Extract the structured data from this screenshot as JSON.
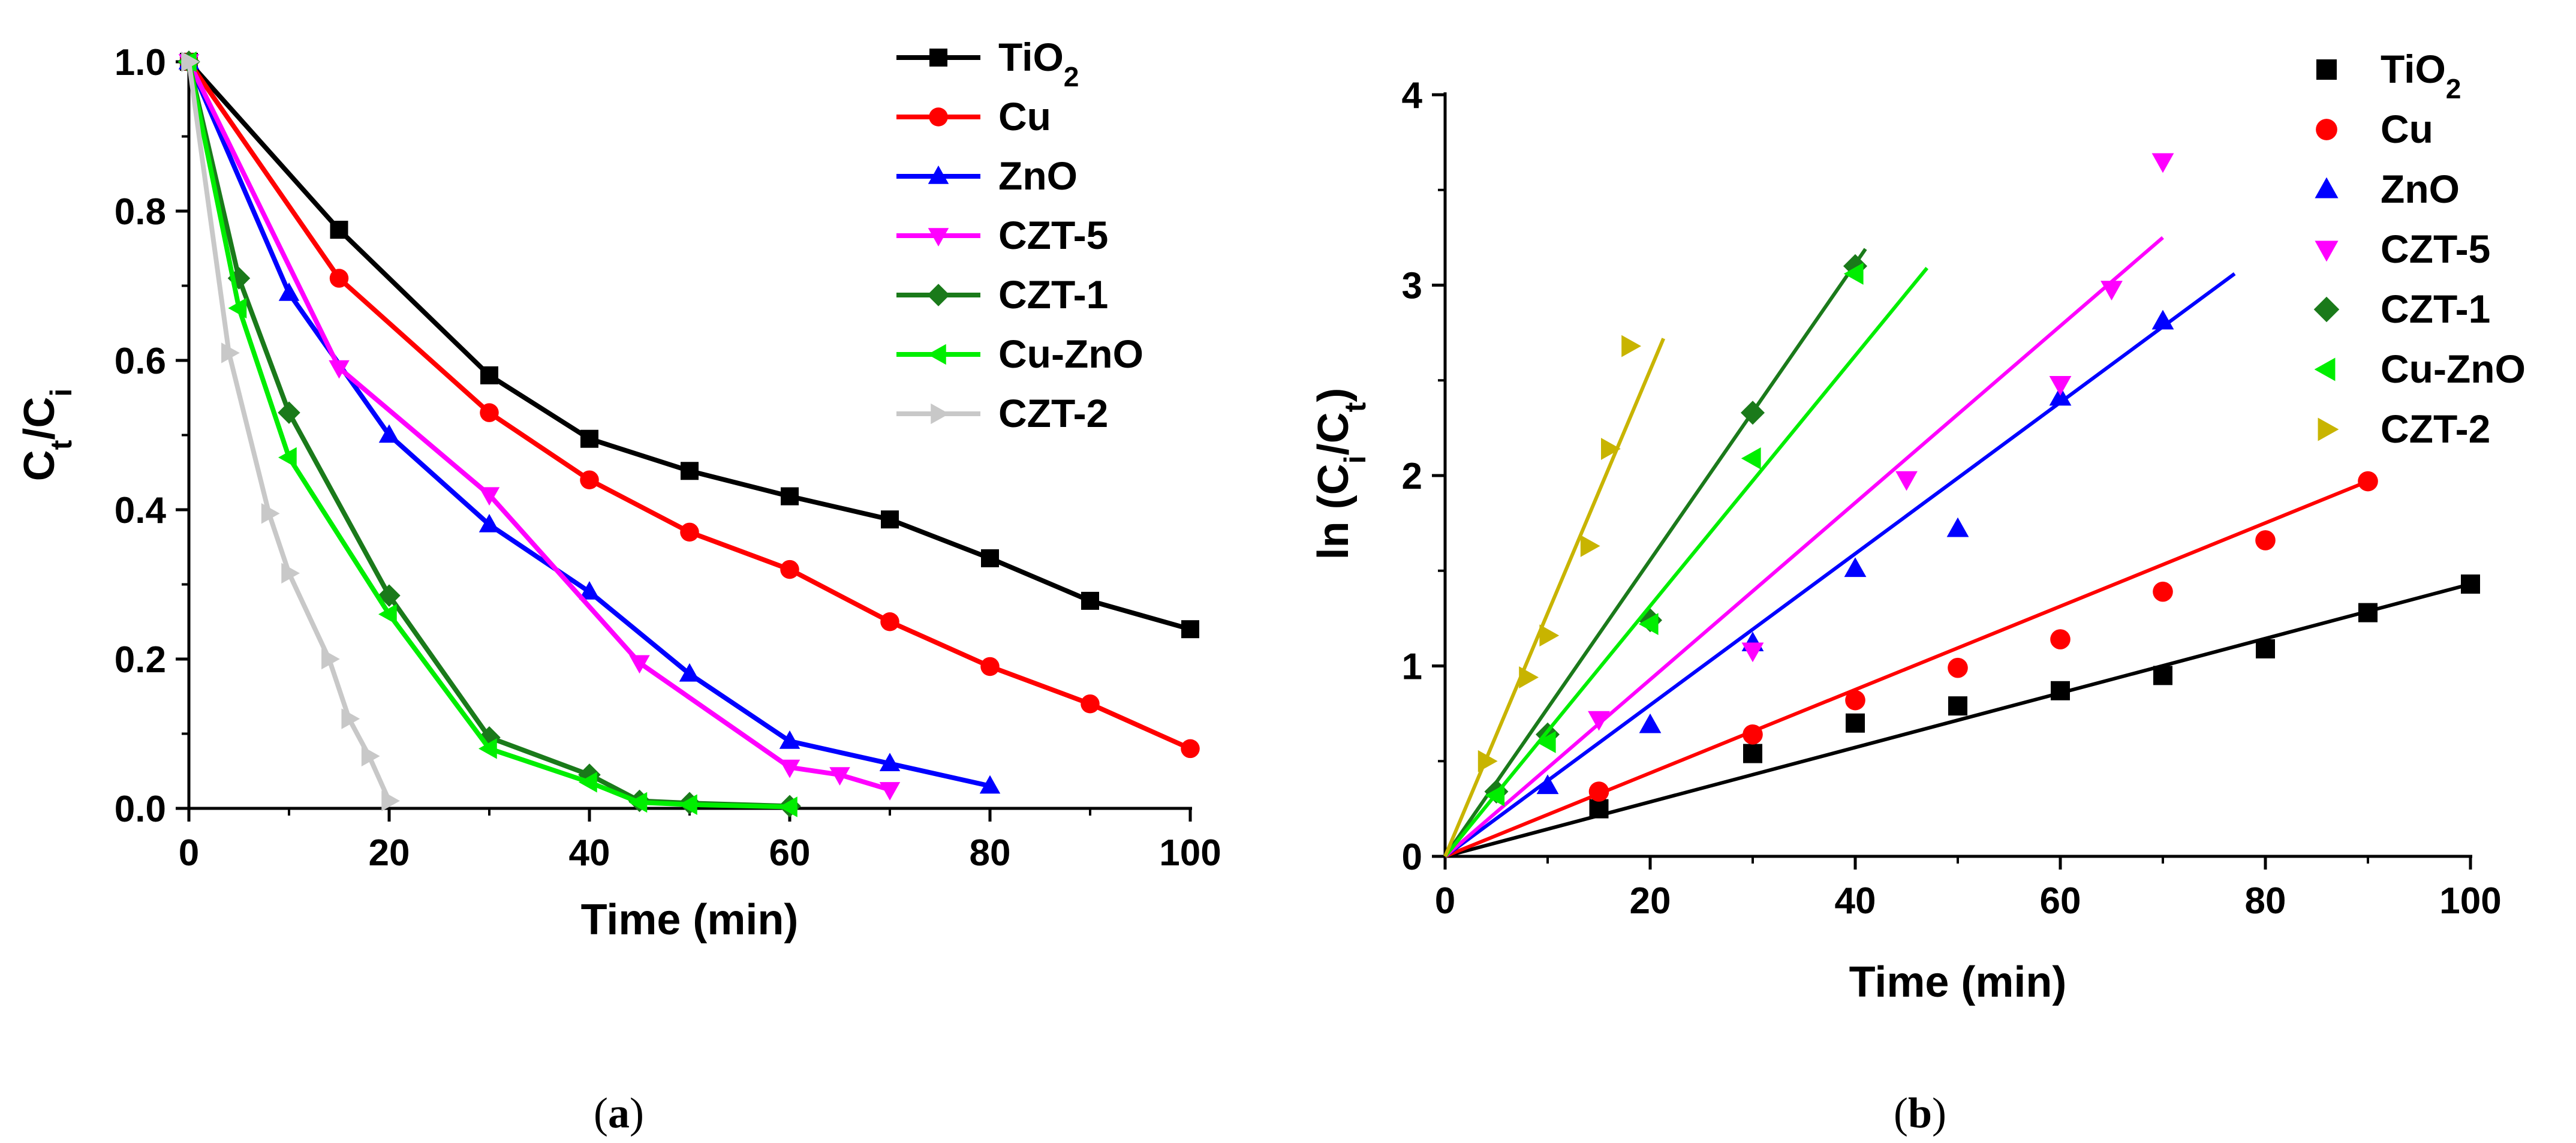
{
  "chart_data": [
    {
      "type": "line",
      "caption": "(a)",
      "ylabel": "Ct/Ci",
      "xlabel": "Time (min)",
      "xlim": [
        0,
        100
      ],
      "ylim": [
        0,
        1.0
      ],
      "xticks": [
        "0",
        "20",
        "40",
        "60",
        "80",
        "100"
      ],
      "yticks": [
        "0.0",
        "0.2",
        "0.4",
        "0.6",
        "0.8",
        "1.0"
      ],
      "series": [
        {
          "name": "TiO2",
          "color": "#000000",
          "marker": "square",
          "x": [
            0,
            15,
            30,
            40,
            50,
            60,
            70,
            80,
            90,
            100
          ],
          "y": [
            1.0,
            0.775,
            0.58,
            0.495,
            0.452,
            0.418,
            0.387,
            0.335,
            0.278,
            0.24
          ]
        },
        {
          "name": "Cu",
          "color": "#ff0000",
          "marker": "circle",
          "x": [
            0,
            15,
            30,
            40,
            50,
            60,
            70,
            80,
            90,
            100
          ],
          "y": [
            1.0,
            0.71,
            0.53,
            0.44,
            0.37,
            0.32,
            0.25,
            0.19,
            0.14,
            0.08
          ]
        },
        {
          "name": "ZnO",
          "color": "#0000ff",
          "marker": "triangle-up",
          "x": [
            0,
            10,
            20,
            30,
            40,
            50,
            60,
            70,
            80
          ],
          "y": [
            1.0,
            0.69,
            0.5,
            0.38,
            0.29,
            0.18,
            0.09,
            0.06,
            0.03
          ]
        },
        {
          "name": "CZT-5",
          "color": "#ff00ff",
          "marker": "triangle-down",
          "x": [
            0,
            15,
            30,
            45,
            60,
            65,
            70
          ],
          "y": [
            1.0,
            0.59,
            0.42,
            0.195,
            0.055,
            0.045,
            0.025
          ]
        },
        {
          "name": "CZT-1",
          "color": "#1a7a1a",
          "marker": "diamond",
          "x": [
            0,
            5,
            10,
            20,
            30,
            40,
            45,
            50,
            60
          ],
          "y": [
            1.0,
            0.71,
            0.53,
            0.285,
            0.095,
            0.045,
            0.01,
            0.007,
            0.003
          ]
        },
        {
          "name": "Cu-ZnO",
          "color": "#00ee00",
          "marker": "triangle-left",
          "x": [
            0,
            5,
            10,
            20,
            30,
            40,
            45,
            50,
            60
          ],
          "y": [
            1.0,
            0.67,
            0.47,
            0.26,
            0.08,
            0.035,
            0.008,
            0.005,
            0.002
          ]
        },
        {
          "name": "CZT-2",
          "color": "#c8c8c8",
          "marker": "triangle-right",
          "x": [
            0,
            4,
            8,
            10,
            14,
            16,
            18,
            20
          ],
          "y": [
            1.0,
            0.61,
            0.395,
            0.315,
            0.2,
            0.12,
            0.07,
            0.01
          ]
        }
      ]
    },
    {
      "type": "scatter",
      "caption": "(b)",
      "ylabel": "ln (Ci/Ct)",
      "xlabel": "Time (min)",
      "xlim": [
        0,
        100
      ],
      "ylim": [
        0,
        4
      ],
      "xticks": [
        "0",
        "20",
        "40",
        "60",
        "80",
        "100"
      ],
      "yticks": [
        "0",
        "1",
        "2",
        "3",
        "4"
      ],
      "series": [
        {
          "name": "TiO2",
          "color": "#000000",
          "marker": "square",
          "x": [
            15,
            30,
            40,
            50,
            60,
            70,
            80,
            90,
            100
          ],
          "y": [
            0.25,
            0.54,
            0.7,
            0.79,
            0.87,
            0.95,
            1.09,
            1.28,
            1.43
          ],
          "fit_x": [
            0,
            100
          ],
          "fit_y": [
            0,
            1.43
          ]
        },
        {
          "name": "Cu",
          "color": "#ff0000",
          "marker": "circle",
          "x": [
            15,
            30,
            40,
            50,
            60,
            70,
            80,
            90
          ],
          "y": [
            0.34,
            0.64,
            0.82,
            0.99,
            1.14,
            1.39,
            1.66,
            1.97
          ],
          "fit_x": [
            0,
            90
          ],
          "fit_y": [
            0,
            1.97
          ]
        },
        {
          "name": "ZnO",
          "color": "#0000ff",
          "marker": "triangle-up",
          "x": [
            10,
            20,
            30,
            40,
            50,
            60,
            70
          ],
          "y": [
            0.37,
            0.69,
            1.12,
            1.51,
            1.72,
            2.41,
            2.81
          ],
          "fit_x": [
            0,
            77
          ],
          "fit_y": [
            0,
            3.06
          ]
        },
        {
          "name": "CZT-5",
          "color": "#ff00ff",
          "marker": "triangle-down",
          "x": [
            15,
            30,
            45,
            60,
            65,
            70
          ],
          "y": [
            0.72,
            1.08,
            1.98,
            2.48,
            2.98,
            3.65
          ],
          "fit_x": [
            0,
            70
          ],
          "fit_y": [
            0,
            3.25
          ]
        },
        {
          "name": "CZT-1",
          "color": "#1a7a1a",
          "marker": "diamond",
          "x": [
            5,
            10,
            20,
            30,
            40
          ],
          "y": [
            0.34,
            0.64,
            1.24,
            2.33,
            3.1
          ],
          "fit_x": [
            0,
            41
          ],
          "fit_y": [
            0,
            3.19
          ]
        },
        {
          "name": "Cu-ZnO",
          "color": "#00ee00",
          "marker": "triangle-left",
          "x": [
            5,
            10,
            20,
            30,
            40
          ],
          "y": [
            0.32,
            0.6,
            1.22,
            2.09,
            3.06
          ],
          "fit_x": [
            0,
            47
          ],
          "fit_y": [
            0,
            3.09
          ]
        },
        {
          "name": "CZT-2",
          "color": "#c8b400",
          "marker": "triangle-right",
          "x": [
            4,
            8,
            10,
            14,
            16,
            18
          ],
          "y": [
            0.5,
            0.94,
            1.16,
            1.63,
            2.14,
            2.68
          ],
          "fit_x": [
            0,
            21.3
          ],
          "fit_y": [
            0,
            2.72
          ]
        }
      ]
    }
  ]
}
